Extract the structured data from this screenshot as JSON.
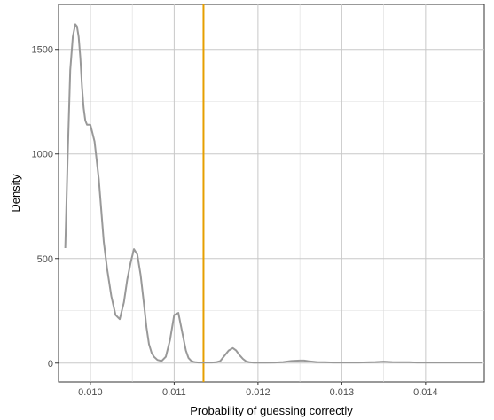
{
  "chart_data": {
    "type": "line",
    "xlabel": "Probability of guessing correctly",
    "ylabel": "Density",
    "xlim": [
      0.00962,
      0.0147
    ],
    "ylim": [
      -90,
      1715
    ],
    "grid": true,
    "x_ticks": [
      0.01,
      0.011,
      0.012,
      0.013,
      0.014
    ],
    "x_tick_labels": [
      "0.010",
      "0.011",
      "0.012",
      "0.013",
      "0.014"
    ],
    "y_ticks": [
      0,
      500,
      1000,
      1500
    ],
    "y_tick_labels": [
      "0",
      "500",
      "1000",
      "1500"
    ],
    "reference_line": {
      "x": 0.01135,
      "color": "#e69f00"
    },
    "series": [
      {
        "color": "#999999",
        "x": [
          0.0097,
          0.00973,
          0.00976,
          0.00979,
          0.00982,
          0.00984,
          0.00986,
          0.00988,
          0.0099,
          0.00992,
          0.00994,
          0.00996,
          0.00998,
          0.01,
          0.01005,
          0.0101,
          0.01013,
          0.01016,
          0.0102,
          0.01025,
          0.0103,
          0.01035,
          0.0104,
          0.01044,
          0.01048,
          0.01052,
          0.01056,
          0.0106,
          0.01064,
          0.01067,
          0.0107,
          0.01073,
          0.01076,
          0.0108,
          0.01085,
          0.0109,
          0.01095,
          0.011,
          0.01105,
          0.0111,
          0.01114,
          0.01117,
          0.0112,
          0.01123,
          0.01126,
          0.01129,
          0.01132,
          0.01135,
          0.0114,
          0.01145,
          0.0115,
          0.01155,
          0.0116,
          0.01165,
          0.0117,
          0.01174,
          0.01178,
          0.01182,
          0.01186,
          0.0119,
          0.01195,
          0.012,
          0.0121,
          0.0122,
          0.0123,
          0.0124,
          0.0125,
          0.01255,
          0.0126,
          0.0127,
          0.0128,
          0.0129,
          0.013,
          0.0132,
          0.0134,
          0.0135,
          0.0136,
          0.0137,
          0.0138,
          0.0139,
          0.014,
          0.0142,
          0.0144,
          0.0146,
          0.01467
        ],
        "y": [
          550,
          1000,
          1400,
          1560,
          1620,
          1610,
          1560,
          1460,
          1320,
          1220,
          1160,
          1140,
          1140,
          1140,
          1060,
          880,
          730,
          580,
          450,
          320,
          230,
          210,
          290,
          400,
          480,
          545,
          520,
          420,
          280,
          170,
          90,
          50,
          30,
          15,
          10,
          30,
          110,
          230,
          240,
          140,
          60,
          25,
          12,
          6,
          4,
          3,
          3,
          3,
          3,
          3,
          4,
          10,
          35,
          60,
          72,
          60,
          38,
          20,
          8,
          4,
          2,
          2,
          2,
          3,
          5,
          10,
          12,
          12,
          9,
          5,
          4,
          3,
          3,
          3,
          5,
          7,
          5,
          4,
          4,
          3,
          3,
          3,
          3,
          3,
          3
        ]
      }
    ]
  }
}
